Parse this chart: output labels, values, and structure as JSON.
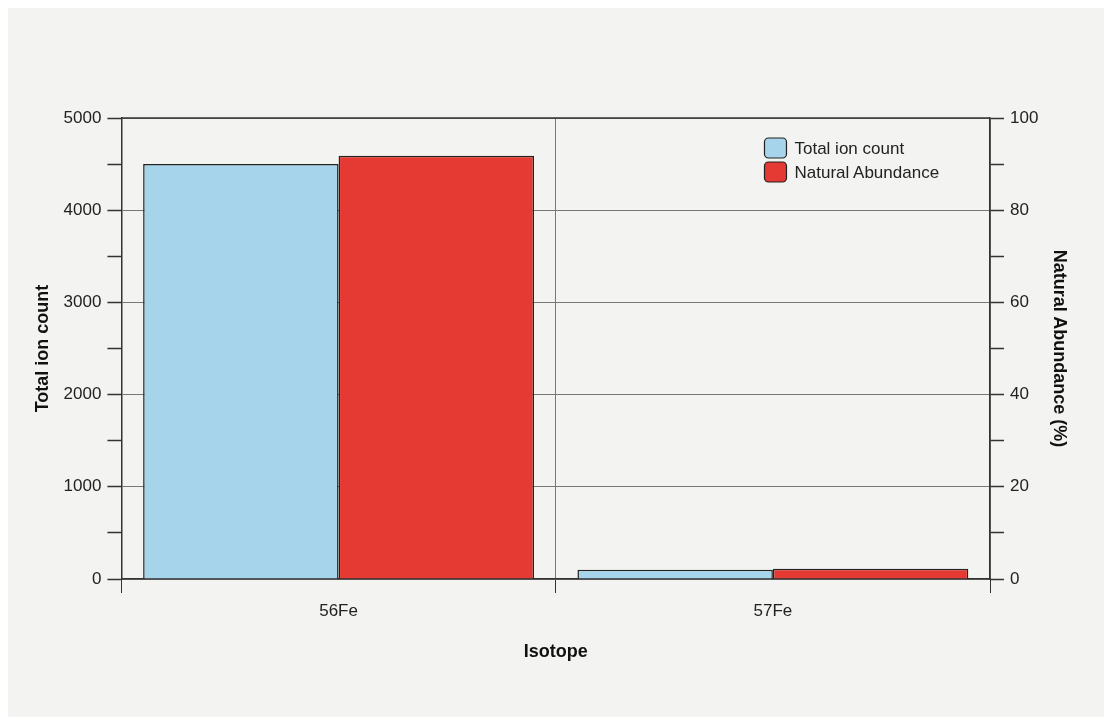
{
  "chart_data": {
    "type": "bar",
    "xlabel": "Isotope",
    "ylabel": "Total ion count",
    "y2label": "Natural Abundance (%)",
    "categories": [
      "56Fe",
      "57Fe"
    ],
    "series": [
      {
        "name": "Total ion count",
        "color": "#a6d4ea",
        "values": [
          4500,
          100
        ]
      },
      {
        "name": "Natural Abundance",
        "color": "#e43a33",
        "values": [
          91.8,
          2.2
        ],
        "axis": "y2"
      }
    ],
    "ylim": [
      0,
      5000
    ],
    "yticks": [
      0,
      {
        "value": 500,
        "label": null
      },
      1000,
      {
        "value": 1500,
        "label": null
      },
      2000,
      {
        "value": 2500,
        "label": null
      },
      3000,
      {
        "value": 3500,
        "label": null
      },
      4000,
      {
        "value": 4500,
        "label": null
      },
      5000
    ],
    "y2lim": [
      0,
      100
    ],
    "y2ticks": [
      0,
      {
        "value": 10,
        "label": null
      },
      20,
      {
        "value": 30,
        "label": null
      },
      40,
      {
        "value": 50,
        "label": null
      },
      60,
      {
        "value": 70,
        "label": null
      },
      80,
      {
        "value": 90,
        "label": null
      },
      100
    ],
    "grid": true,
    "legend": "top right"
  }
}
